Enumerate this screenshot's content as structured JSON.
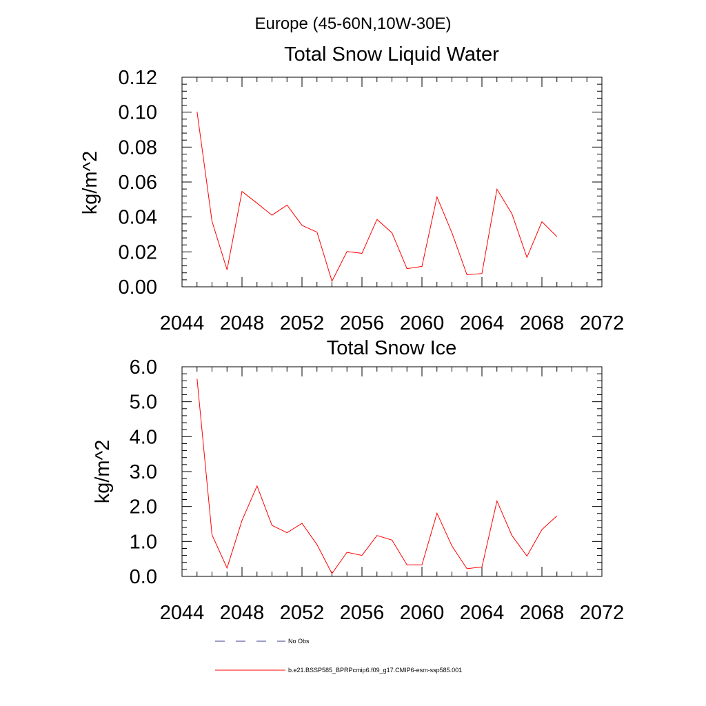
{
  "figure": {
    "suptitle": "Europe (45-60N,10W-30E)",
    "line_color": "#ff0000",
    "obs_color": "#3a3a8c"
  },
  "legend": {
    "entries": [
      {
        "label": "No Obs",
        "style": "dashed",
        "color": "#3a3a8c"
      },
      {
        "label": "b.e21.BSSP585_BPRPcmip6.f09_g17.CMIP6-esm-ssp585.001",
        "style": "solid",
        "color": "#ff0000"
      }
    ]
  },
  "chart_data": [
    {
      "type": "line",
      "title": "Total Snow Liquid Water",
      "xlabel": "",
      "ylabel": "kg/m^2",
      "xlim": [
        2044,
        2072
      ],
      "ylim": [
        0,
        0.12
      ],
      "xticks": [
        2044,
        2048,
        2052,
        2056,
        2060,
        2064,
        2068,
        2072
      ],
      "xtick_labels": [
        "2044",
        "2048",
        "2052",
        "2056",
        "2060",
        "2064",
        "2068",
        "2072"
      ],
      "yticks": [
        0,
        0.02,
        0.04,
        0.06,
        0.08,
        0.1,
        0.12
      ],
      "ytick_labels": [
        "0.00",
        "0.02",
        "0.04",
        "0.06",
        "0.08",
        "0.10",
        "0.12"
      ],
      "grid": false,
      "series": [
        {
          "color": "#ff0000",
          "x": [
            2045,
            2046,
            2047,
            2048,
            2049,
            2050,
            2051,
            2052,
            2053,
            2054,
            2055,
            2056,
            2057,
            2058,
            2059,
            2060,
            2061,
            2062,
            2063,
            2064,
            2065,
            2066,
            2067,
            2068,
            2069
          ],
          "y": [
            0.1003,
            0.0375,
            0.0097,
            0.0546,
            0.0479,
            0.041,
            0.0468,
            0.0352,
            0.0313,
            0.0032,
            0.0202,
            0.0192,
            0.0386,
            0.0309,
            0.0104,
            0.0117,
            0.0515,
            0.0309,
            0.0069,
            0.0076,
            0.0559,
            0.0418,
            0.0168,
            0.0373,
            0.0287
          ]
        }
      ]
    },
    {
      "type": "line",
      "title": "Total Snow Ice",
      "xlabel": "",
      "ylabel": "kg/m^2",
      "xlim": [
        2044,
        2072
      ],
      "ylim": [
        0,
        6.0
      ],
      "xticks": [
        2044,
        2048,
        2052,
        2056,
        2060,
        2064,
        2068,
        2072
      ],
      "xtick_labels": [
        "2044",
        "2048",
        "2052",
        "2056",
        "2060",
        "2064",
        "2068",
        "2072"
      ],
      "yticks": [
        0,
        1,
        2,
        3,
        4,
        5,
        6
      ],
      "ytick_labels": [
        "0.0",
        "1.0",
        "2.0",
        "3.0",
        "4.0",
        "5.0",
        "6.0"
      ],
      "grid": false,
      "series": [
        {
          "color": "#ff0000",
          "x": [
            2045,
            2046,
            2047,
            2048,
            2049,
            2050,
            2051,
            2052,
            2053,
            2054,
            2055,
            2056,
            2057,
            2058,
            2059,
            2060,
            2061,
            2062,
            2063,
            2064,
            2065,
            2066,
            2067,
            2068,
            2069
          ],
          "y": [
            5.66,
            1.19,
            0.24,
            1.6,
            2.59,
            1.46,
            1.25,
            1.52,
            0.91,
            0.08,
            0.69,
            0.6,
            1.17,
            1.04,
            0.33,
            0.33,
            1.81,
            0.87,
            0.22,
            0.27,
            2.16,
            1.17,
            0.58,
            1.34,
            1.73
          ]
        }
      ]
    }
  ]
}
